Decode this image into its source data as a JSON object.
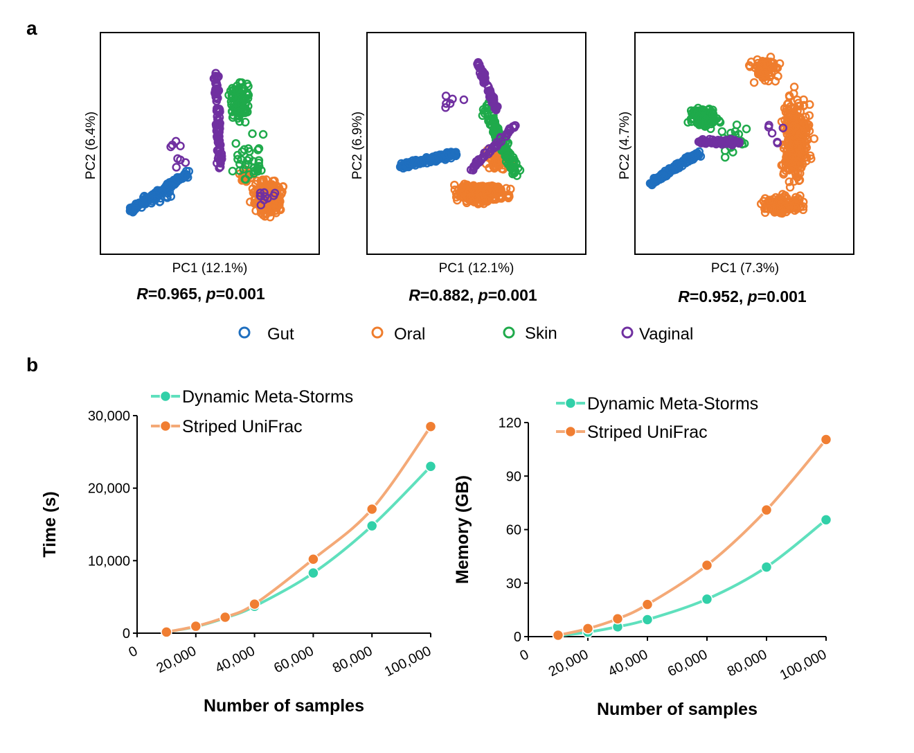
{
  "panel_labels": {
    "a": "a",
    "b": "b"
  },
  "colors": {
    "gut": "#1f6fbf",
    "oral": "#ef7d2d",
    "skin": "#1faa4b",
    "vaginal": "#7030a0",
    "dms": "#31d0a8",
    "dms_line": "#5fe0bd",
    "su": "#f07e32",
    "su_line": "#f4a977"
  },
  "legend_a": [
    {
      "key": "gut",
      "label": "Gut"
    },
    {
      "key": "oral",
      "label": "Oral"
    },
    {
      "key": "skin",
      "label": "Skin"
    },
    {
      "key": "vaginal",
      "label": "Vaginal"
    }
  ],
  "scatter_panels": [
    {
      "xlabel": "PC1 (12.1%)",
      "ylabel": "PC2 (6.4%)",
      "r_sym": "R",
      "r_val": "=0.965, ",
      "p_sym": "p",
      "p_val": "=0.001"
    },
    {
      "xlabel": "PC1 (12.1%)",
      "ylabel": "PC2 (6.9%)",
      "r_sym": "R",
      "r_val": "=0.882, ",
      "p_sym": "p",
      "p_val": "=0.001"
    },
    {
      "xlabel": "PC1 (7.3%)",
      "ylabel": "PC2 (4.7%)",
      "r_sym": "R",
      "r_val": "=0.952, ",
      "p_sym": "p",
      "p_val": "=0.001"
    }
  ],
  "chart_data": [
    {
      "type": "line",
      "ylabel": "Time (s)",
      "xlabel": "Number of samples",
      "x": [
        10000,
        20000,
        30000,
        40000,
        60000,
        80000,
        100000
      ],
      "xticks": [
        "0",
        "20,000",
        "40,000",
        "60,000",
        "80,000",
        "100,000"
      ],
      "xlim": [
        0,
        100000
      ],
      "yticks": [
        "0",
        "10,000",
        "20,000",
        "30,000"
      ],
      "ylim": [
        0,
        30000
      ],
      "series": [
        {
          "name": "Dynamic Meta-Storms",
          "key": "dms",
          "values": [
            150,
            900,
            2100,
            3700,
            8300,
            14800,
            23000
          ]
        },
        {
          "name": "Striped UniFrac",
          "key": "su",
          "values": [
            150,
            950,
            2200,
            4000,
            10200,
            17100,
            28500
          ]
        }
      ]
    },
    {
      "type": "line",
      "ylabel": "Memory (GB)",
      "xlabel": "Number of samples",
      "x": [
        10000,
        20000,
        30000,
        40000,
        60000,
        80000,
        100000
      ],
      "xticks": [
        "0",
        "20,000",
        "40,000",
        "60,000",
        "80,000",
        "100,000"
      ],
      "xlim": [
        0,
        100000
      ],
      "yticks": [
        "0",
        "30",
        "60",
        "90",
        "120"
      ],
      "ylim": [
        0,
        120
      ],
      "series": [
        {
          "name": "Dynamic Meta-Storms",
          "key": "dms",
          "values": [
            0.5,
            2.5,
            5.5,
            9.5,
            21,
            39,
            65.5
          ]
        },
        {
          "name": "Striped UniFrac",
          "key": "su",
          "values": [
            0.8,
            4.5,
            10,
            18,
            40,
            71,
            110.5
          ]
        }
      ]
    }
  ]
}
